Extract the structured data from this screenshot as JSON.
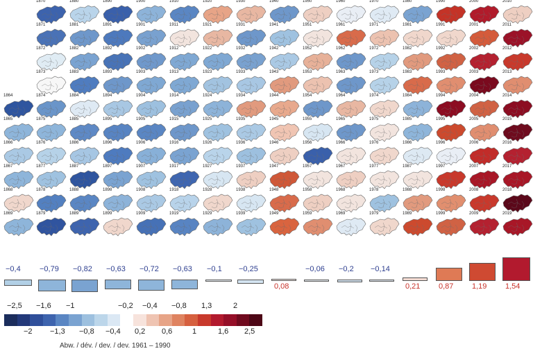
{
  "decades": [
    {
      "years": [
        1870,
        1871,
        1872,
        1873,
        1874,
        1875,
        1876,
        1877,
        1878,
        1879
      ],
      "colors": [
        "#3d63ad",
        "#4a72b6",
        "#e0ecf4",
        "#f7f7f7",
        "#6a95c9",
        "#8eb5da",
        "#b6d2e8",
        "#9fc2e0",
        "#5380c0",
        "#30549f"
      ]
    },
    {
      "years": [
        1880,
        1881,
        1882,
        1883,
        1884,
        1885,
        1886,
        1887,
        1888,
        1889
      ],
      "colors": [
        "#b9d4ea",
        "#6e97ca",
        "#7aa3d1",
        "#4f7cbf",
        "#dfeaf4",
        "#5e89c5",
        "#a6c6e3",
        "#2f559f",
        "#5a86c3",
        "#3e64ae"
      ]
    },
    {
      "years": [
        1890,
        1891,
        1892,
        1893,
        1894,
        1895,
        1896,
        1897,
        1898,
        1899
      ],
      "colors": [
        "#3a60ab",
        "#4d79bd",
        "#4873b7",
        "#6e97ca",
        "#a8c7e3",
        "#5884c2",
        "#4e7bbf",
        "#7aa3d1",
        "#8db3d9",
        "#f0d7cc"
      ]
    },
    {
      "years": [
        1900,
        1901,
        1902,
        1903,
        1904,
        1905,
        1906,
        1907,
        1908,
        1909
      ],
      "colors": [
        "#8db3d9",
        "#79a1cf",
        "#6f98cb",
        "#7fa8d3",
        "#9dc0df",
        "#5a86c3",
        "#88b0d8",
        "#9fc2e0",
        "#aac9e4",
        "#4671b6"
      ]
    },
    {
      "years": [
        1910,
        1911,
        1912,
        1913,
        1914,
        1915,
        1916,
        1917,
        1918,
        1919
      ],
      "colors": [
        "#5a86c3",
        "#f2e4de",
        "#7fa8d3",
        "#7fa8d3",
        "#79a1cf",
        "#6e97ca",
        "#7aa3d1",
        "#3f66b0",
        "#b8d3ea",
        "#5884c2"
      ]
    },
    {
      "years": [
        1920,
        1921,
        1922,
        1923,
        1924,
        1925,
        1926,
        1927,
        1928,
        1929
      ],
      "colors": [
        "#e7a487",
        "#e8b7a2",
        "#7fa8d3",
        "#a2c3e0",
        "#8db3d9",
        "#9fc2e0",
        "#b9d4ea",
        "#d7e6f2",
        "#f0d7cc",
        "#8db3d9"
      ]
    },
    {
      "years": [
        1930,
        1931,
        1932,
        1933,
        1934,
        1935,
        1936,
        1937,
        1938,
        1939
      ],
      "colors": [
        "#e8b7a2",
        "#6e97ca",
        "#79a1cf",
        "#a8c7e3",
        "#e19a7e",
        "#aac9e4",
        "#9dc0df",
        "#eecfc2",
        "#d7e6f2",
        "#9fc2e0"
      ]
    },
    {
      "years": [
        1940,
        1941,
        1942,
        1943,
        1944,
        1945,
        1946,
        1947,
        1948,
        1949
      ],
      "colors": [
        "#6e97ca",
        "#9fc2e0",
        "#aac9e4",
        "#e19a7e",
        "#e8a98d",
        "#f0c5b3",
        "#eecfc2",
        "#cf5838",
        "#d86b4b",
        "#d9643f"
      ]
    },
    {
      "years": [
        1950,
        1951,
        1952,
        1953,
        1954,
        1955,
        1956,
        1957,
        1958,
        1959
      ],
      "colors": [
        "#eecfc2",
        "#f2e4de",
        "#e7b199",
        "#ecc2b0",
        "#6e97ca",
        "#d7e6f2",
        "#3a60ab",
        "#f2e4de",
        "#eecfc2",
        "#e08e70"
      ]
    },
    {
      "years": [
        1960,
        1961,
        1962,
        1963,
        1964,
        1965,
        1966,
        1967,
        1968,
        1969
      ],
      "colors": [
        "#e9eef5",
        "#d86b4b",
        "#6e97ca",
        "#6e97ca",
        "#e8b7a2",
        "#6e97ca",
        "#f2e4de",
        "#eecfc2",
        "#f2e4de",
        "#dfeaf4"
      ]
    },
    {
      "years": [
        1970,
        1971,
        1972,
        1973,
        1974,
        1975,
        1976,
        1977,
        1978,
        1979
      ],
      "colors": [
        "#dfeaf4",
        "#ecc2b0",
        "#b6d2e8",
        "#b6d2e8",
        "#f0d7cc",
        "#f2e4de",
        "#f0d7cc",
        "#f2e4de",
        "#9fc2e0",
        "#f0d7cc"
      ]
    },
    {
      "years": [
        1980,
        1981,
        1982,
        1983,
        1984,
        1985,
        1986,
        1987,
        1988,
        1989
      ],
      "colors": [
        "#7aa3d1",
        "#f0d7cc",
        "#e19a7e",
        "#d86b4b",
        "#8db3d9",
        "#8eb5da",
        "#dde9f3",
        "#f2e4de",
        "#e19a7e",
        "#cc4a2e"
      ]
    },
    {
      "years": [
        1990,
        1991,
        1992,
        1993,
        1994,
        1995,
        1996,
        1997,
        1998,
        1999
      ],
      "colors": [
        "#c43327",
        "#f0d7cc",
        "#d06244",
        "#e08e70",
        "#8c0d22",
        "#cc4a2e",
        "#e9eef5",
        "#c8392c",
        "#e18f6f",
        "#d06244"
      ]
    },
    {
      "years": [
        2000,
        2001,
        2002,
        2003,
        2004,
        2005,
        2006,
        2007,
        2008,
        2009
      ],
      "colors": [
        "#b11b2b",
        "#d45b3b",
        "#b42130",
        "#7a0a1e",
        "#d06244",
        "#e08e70",
        "#c12c29",
        "#a81727",
        "#c8392c",
        "#b42130"
      ]
    },
    {
      "years": [
        2010,
        2011,
        2012,
        2013,
        2014,
        2015,
        2016,
        2017,
        2018,
        2019
      ],
      "colors": [
        "#eecfc2",
        "#9b1228",
        "#c8392c",
        "#e08e70",
        "#8c0d22",
        "#6e0b1e",
        "#b42130",
        "#a81727",
        "#5b081a",
        "#a81727"
      ]
    }
  ],
  "extra_maps": [
    {
      "year": 1864,
      "color": "#2f559f",
      "row": 4
    },
    {
      "year": 1865,
      "color": "#8eb5da",
      "row": 5
    },
    {
      "year": 1866,
      "color": "#aac9e4",
      "row": 6
    },
    {
      "year": 1867,
      "color": "#8eb5da",
      "row": 7
    },
    {
      "year": 1868,
      "color": "#f0d7cc",
      "row": 8
    },
    {
      "year": 1869,
      "color": "#8eb5da",
      "row": 9
    }
  ],
  "decade_bars": [
    {
      "value": -0.4,
      "label": "−0,4",
      "color": "#b2d0e6"
    },
    {
      "value": -0.79,
      "label": "−0,79",
      "color": "#8eb5da"
    },
    {
      "value": -0.82,
      "label": "−0,82",
      "color": "#7aa3d1"
    },
    {
      "value": -0.63,
      "label": "−0,63",
      "color": "#8eb5da"
    },
    {
      "value": -0.72,
      "label": "−0,72",
      "color": "#8eb5da"
    },
    {
      "value": -0.63,
      "label": "−0,63",
      "color": "#8eb5da"
    },
    {
      "value": -0.1,
      "label": "−0,1",
      "color": "#eef3f8"
    },
    {
      "value": -0.25,
      "label": "−0,25",
      "color": "#d4e4f1"
    },
    {
      "value": 0.08,
      "label": "0,08",
      "color": "#f7ebe6"
    },
    {
      "value": -0.06,
      "label": "−0,06",
      "color": "#eef3f8"
    },
    {
      "value": -0.2,
      "label": "−0,2",
      "color": "#d4e4f1"
    },
    {
      "value": -0.14,
      "label": "−0,14",
      "color": "#e6eef6"
    },
    {
      "value": 0.21,
      "label": "0,21",
      "color": "#f4dcd3"
    },
    {
      "value": 0.87,
      "label": "0,87",
      "color": "#df7a55"
    },
    {
      "value": 1.19,
      "label": "1,19",
      "color": "#cf4a32"
    },
    {
      "value": 1.54,
      "label": "1,54",
      "color": "#b21a2e"
    }
  ],
  "legend": {
    "colors": [
      "#1b2d5c",
      "#23397a",
      "#2f4f9a",
      "#3e64ae",
      "#5a86c3",
      "#7aa3d1",
      "#9dc0df",
      "#bcd6ea",
      "#dbe8f4",
      "#ffffff",
      "#f7e3dc",
      "#efc4b2",
      "#e7a487",
      "#df8360",
      "#d6603f",
      "#c8392c",
      "#b21a2e",
      "#950f28",
      "#700a1e",
      "#4d0716"
    ],
    "top_labels": [
      "−2,5",
      "−1,6",
      "−1",
      "−0,2",
      "−0,4",
      "−0,8",
      "1,3",
      "2"
    ],
    "bottom_labels": [
      "−2",
      "−1,3",
      "−0,8",
      "−0,4",
      "0,2",
      "0,6",
      "1",
      "1,6",
      "2,5"
    ],
    "caption": "Abw. / dév. / dev. / dev. 1961 – 1990"
  },
  "colors": {
    "blue_text": "#2d3e8f",
    "red_text": "#c8322a",
    "map_outline": "#6b6b6b"
  }
}
